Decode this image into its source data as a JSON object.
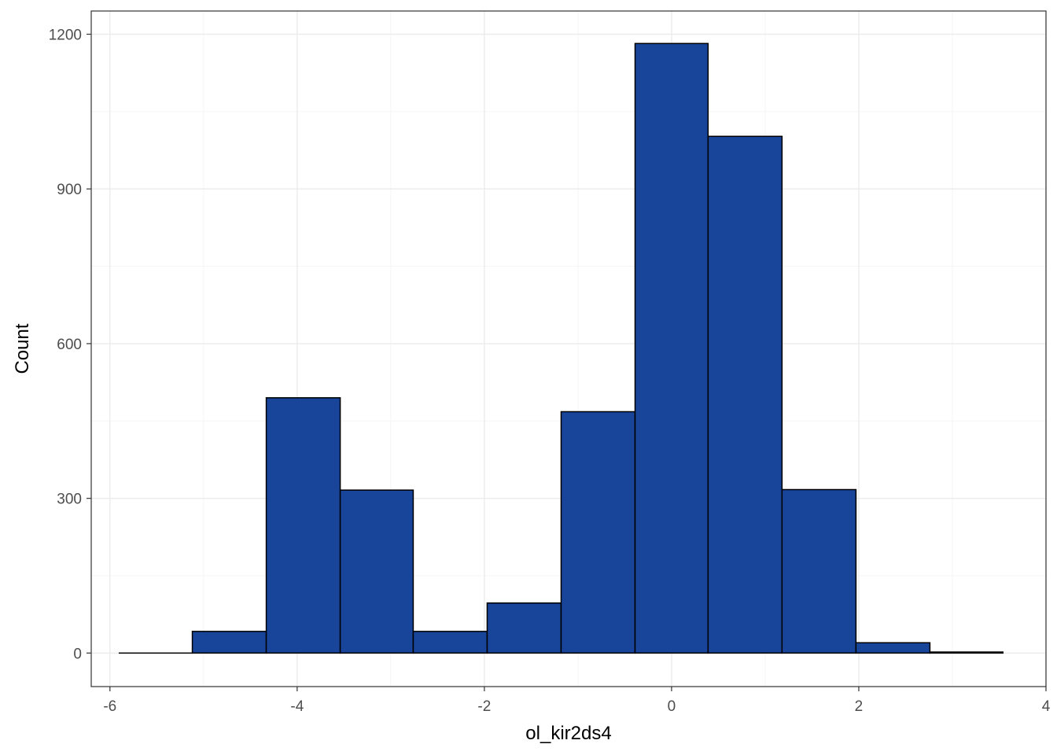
{
  "chart_data": {
    "type": "bar",
    "subtype": "histogram",
    "title": "",
    "xlabel": "ol_kir2ds4",
    "ylabel": "Count",
    "xlim": [
      -6.2,
      4.0
    ],
    "ylim": [
      -65,
      1245
    ],
    "x_ticks": [
      -6,
      -4,
      -2,
      0,
      2,
      4
    ],
    "x_tick_labels": [
      "-6",
      "-4",
      "-2",
      "0",
      "2",
      "4"
    ],
    "y_ticks": [
      0,
      300,
      600,
      900,
      1200
    ],
    "y_tick_labels": [
      "0",
      "300",
      "600",
      "900",
      "1200"
    ],
    "grid": true,
    "bin_width": 0.787,
    "bins": [
      {
        "x_start": -5.9,
        "x_end": -5.12,
        "count": 0
      },
      {
        "x_start": -5.12,
        "x_end": -4.33,
        "count": 42
      },
      {
        "x_start": -4.33,
        "x_end": -3.54,
        "count": 495
      },
      {
        "x_start": -3.54,
        "x_end": -2.76,
        "count": 316
      },
      {
        "x_start": -2.76,
        "x_end": -1.97,
        "count": 42
      },
      {
        "x_start": -1.97,
        "x_end": -1.18,
        "count": 97
      },
      {
        "x_start": -1.18,
        "x_end": -0.39,
        "count": 468
      },
      {
        "x_start": -0.39,
        "x_end": 0.39,
        "count": 1182
      },
      {
        "x_start": 0.39,
        "x_end": 1.18,
        "count": 1002
      },
      {
        "x_start": 1.18,
        "x_end": 1.97,
        "count": 317
      },
      {
        "x_start": 1.97,
        "x_end": 2.76,
        "count": 20
      },
      {
        "x_start": 2.76,
        "x_end": 3.54,
        "count": 2
      }
    ],
    "colors": {
      "bar_fill": "#18449a",
      "bar_stroke": "#000000",
      "panel_border": "#333333",
      "grid_major": "#ebebeb",
      "grid_minor": "#f5f5f5",
      "tick_text": "#4d4d4d",
      "title_text": "#000000"
    }
  }
}
